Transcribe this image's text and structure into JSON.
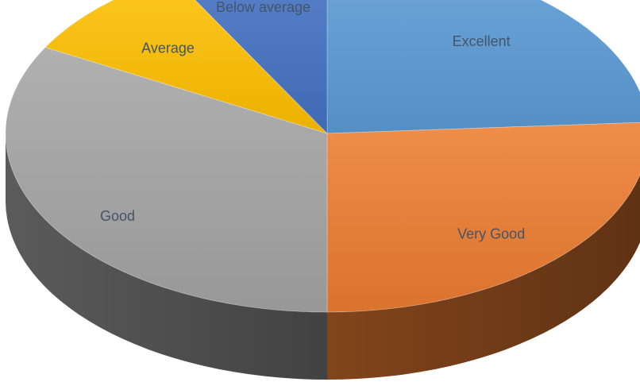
{
  "chart_data": {
    "type": "pie",
    "three_d": true,
    "start_angle_deg": 0,
    "direction": "clockwise",
    "legend": "none",
    "categories": [
      "Excellent",
      "Very Good",
      "Good",
      "Average",
      "Below average"
    ],
    "values": [
      24,
      26,
      33,
      9,
      8
    ],
    "colors": [
      "#5b9bd5",
      "#ed7d31",
      "#a5a5a5",
      "#ffc000",
      "#4472c4"
    ],
    "label_color": "#44546a"
  }
}
